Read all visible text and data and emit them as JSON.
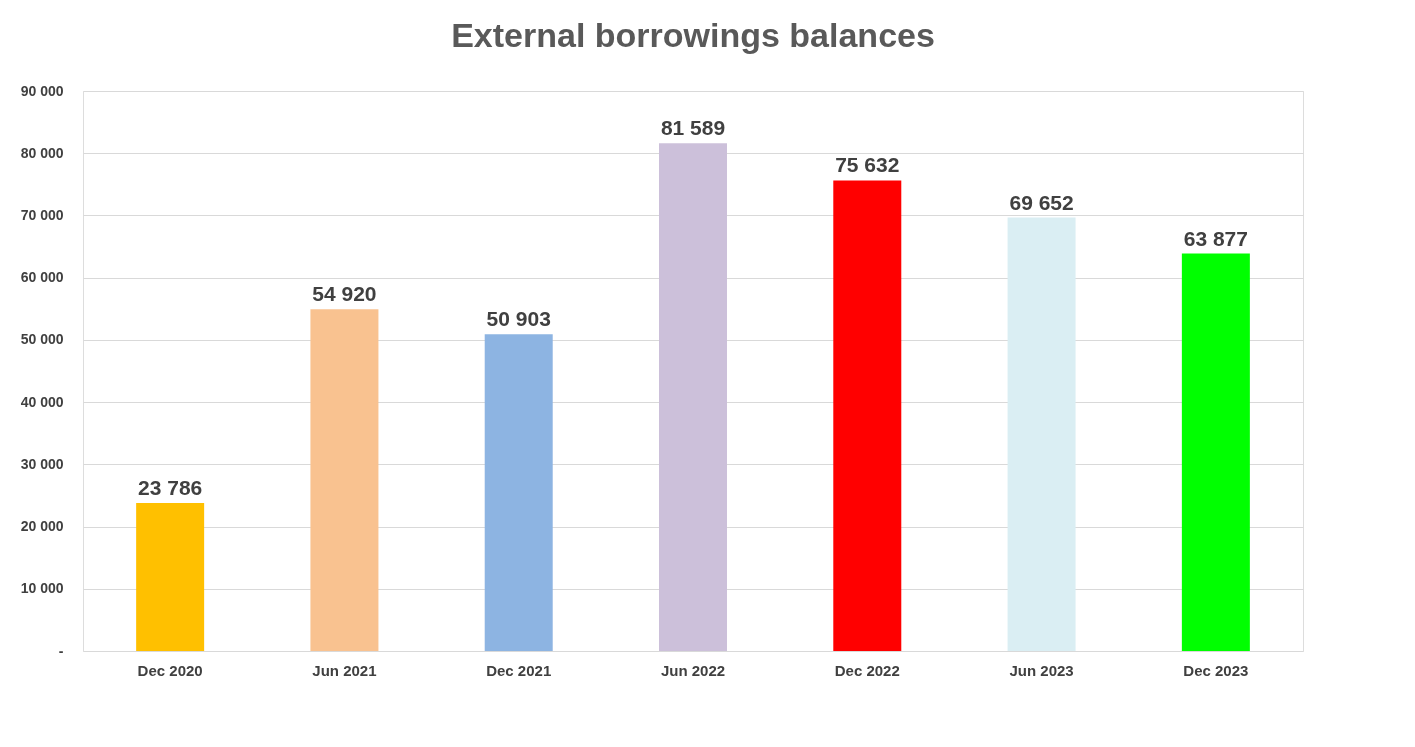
{
  "chart_data": {
    "type": "bar",
    "title": "External borrowings balances",
    "categories": [
      "Dec 2020",
      "Jun 2021",
      "Dec 2021",
      "Jun 2022",
      "Dec 2022",
      "Jun 2023",
      "Dec 2023"
    ],
    "values": [
      23786,
      54920,
      50903,
      81589,
      75632,
      69652,
      63877
    ],
    "colors": [
      "#ffc000",
      "#f9c290",
      "#8db4e2",
      "#ccc0da",
      "#ff0000",
      "#daeef3",
      "#00ff00"
    ],
    "value_labels": [
      "23 786",
      "54 920",
      "50 903",
      "81 589",
      "75 632",
      "69 652",
      "63 877"
    ],
    "ylim": [
      0,
      90000
    ],
    "yticks": [
      {
        "value": 0,
        "label": "-"
      },
      {
        "value": 10000,
        "label": "10 000"
      },
      {
        "value": 20000,
        "label": "20 000"
      },
      {
        "value": 30000,
        "label": "30 000"
      },
      {
        "value": 40000,
        "label": "40 000"
      },
      {
        "value": 50000,
        "label": "50 000"
      },
      {
        "value": 60000,
        "label": "60 000"
      },
      {
        "value": 70000,
        "label": "70 000"
      },
      {
        "value": 80000,
        "label": "80 000"
      },
      {
        "value": 90000,
        "label": "90 000"
      }
    ],
    "grid": "y"
  }
}
